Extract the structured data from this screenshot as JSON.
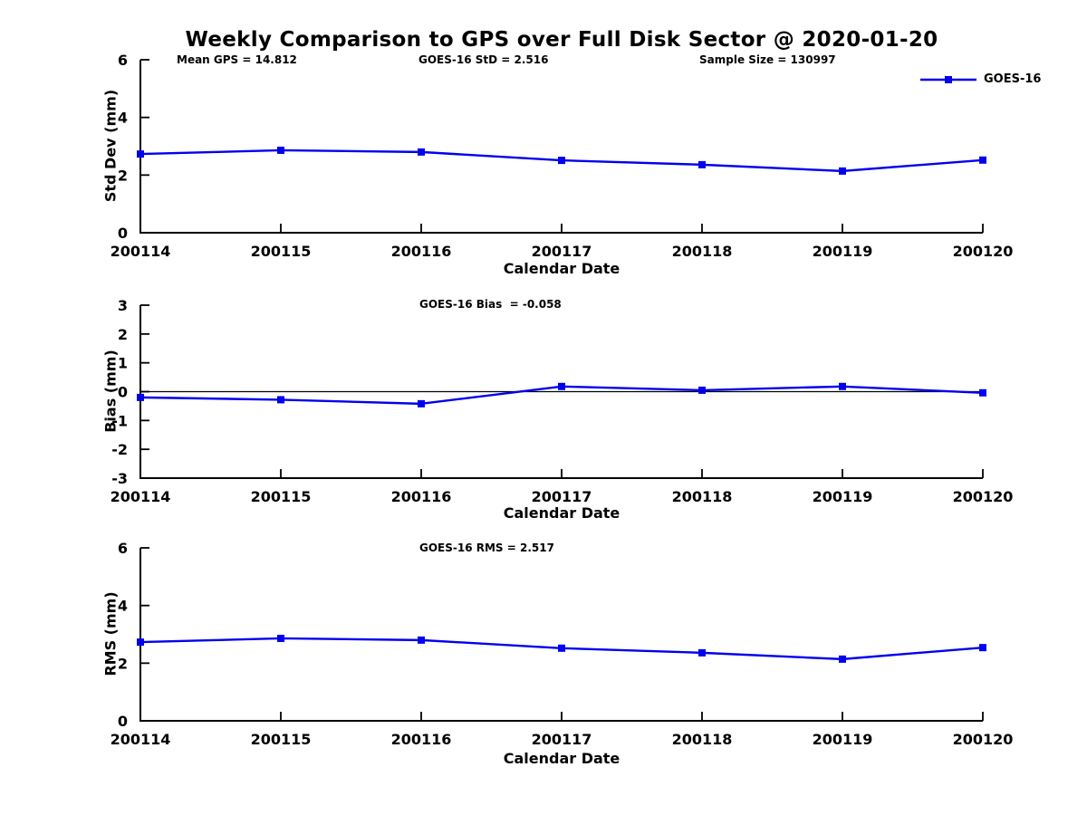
{
  "title": "Weekly Comparison to GPS over Full Disk Sector @ 2020-01-20",
  "colors": {
    "line": "#0000EE",
    "axis": "#000000",
    "text": "#000000",
    "background": "#FFFFFF"
  },
  "legend": {
    "label": "GOES-16",
    "position": "top-right-outside"
  },
  "annotations": {
    "mean_gps": "Mean GPS = 14.812",
    "goes16_std": "GOES-16 StD = 2.516",
    "sample_size": "Sample Size = 130997",
    "goes16_bias": "GOES-16 Bias  = -0.058",
    "goes16_rms": "GOES-16 RMS = 2.517"
  },
  "chart_data": [
    {
      "type": "line",
      "title": "",
      "xlabel": "Calendar Date",
      "ylabel": "Std Dev (mm)",
      "categories": [
        "200114",
        "200115",
        "200116",
        "200117",
        "200118",
        "200119",
        "200120"
      ],
      "series": [
        {
          "name": "GOES-16",
          "values": [
            2.73,
            2.86,
            2.8,
            2.51,
            2.36,
            2.14,
            2.52
          ]
        }
      ],
      "ylim": [
        0,
        6
      ],
      "yticks": [
        0,
        2,
        4,
        6
      ],
      "grid": false,
      "zero_line": false,
      "marker": "square"
    },
    {
      "type": "line",
      "title": "",
      "xlabel": "Calendar Date",
      "ylabel": "Bias (mm)",
      "categories": [
        "200114",
        "200115",
        "200116",
        "200117",
        "200118",
        "200119",
        "200120"
      ],
      "series": [
        {
          "name": "GOES-16",
          "values": [
            -0.2,
            -0.28,
            -0.42,
            0.18,
            0.05,
            0.18,
            -0.04
          ]
        }
      ],
      "ylim": [
        -3,
        3
      ],
      "yticks": [
        -3,
        -2,
        -1,
        0,
        1,
        2,
        3
      ],
      "grid": false,
      "zero_line": true,
      "marker": "square"
    },
    {
      "type": "line",
      "title": "",
      "xlabel": "Calendar Date",
      "ylabel": "RMS (mm)",
      "categories": [
        "200114",
        "200115",
        "200116",
        "200117",
        "200118",
        "200119",
        "200120"
      ],
      "series": [
        {
          "name": "GOES-16",
          "values": [
            2.73,
            2.86,
            2.8,
            2.52,
            2.36,
            2.14,
            2.54
          ]
        }
      ],
      "ylim": [
        0,
        6
      ],
      "yticks": [
        0,
        2,
        4,
        6
      ],
      "grid": false,
      "zero_line": false,
      "marker": "square"
    }
  ]
}
